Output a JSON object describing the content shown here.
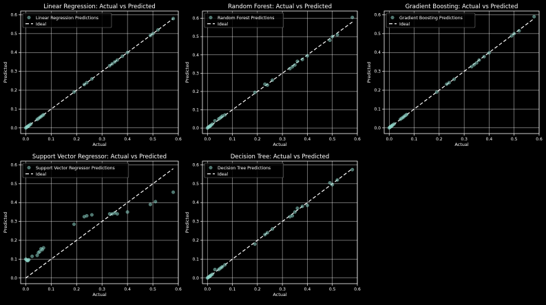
{
  "chart_data": [
    {
      "type": "scatter",
      "title": "Linear Regression: Actual vs Predicted",
      "xlabel": "Actual",
      "ylabel": "Predicted",
      "xlim": [
        -0.02,
        0.6
      ],
      "ylim": [
        -0.03,
        0.62
      ],
      "xticks": [
        0.0,
        0.1,
        0.2,
        0.3,
        0.4,
        0.5,
        0.6
      ],
      "yticks": [
        0.0,
        0.1,
        0.2,
        0.3,
        0.4,
        0.5,
        0.6
      ],
      "grid": true,
      "legend": "upper-left",
      "series": [
        {
          "name": "Linear Regression Predictions",
          "x": [
            0.0,
            0.002,
            0.004,
            0.006,
            0.008,
            0.01,
            0.012,
            0.015,
            0.02,
            0.045,
            0.05,
            0.055,
            0.06,
            0.065,
            0.07,
            0.19,
            0.23,
            0.24,
            0.26,
            0.33,
            0.34,
            0.35,
            0.36,
            0.38,
            0.4,
            0.49,
            0.5,
            0.52,
            0.58
          ],
          "y": [
            0.0,
            0.002,
            0.004,
            0.006,
            0.008,
            0.01,
            0.012,
            0.015,
            0.02,
            0.045,
            0.05,
            0.055,
            0.06,
            0.065,
            0.07,
            0.19,
            0.23,
            0.24,
            0.26,
            0.33,
            0.34,
            0.35,
            0.36,
            0.38,
            0.4,
            0.49,
            0.5,
            0.52,
            0.58
          ]
        }
      ],
      "reference_line": {
        "name": "Ideal",
        "x": [
          0.0,
          0.58
        ],
        "y": [
          0.0,
          0.58
        ]
      }
    },
    {
      "type": "scatter",
      "title": "Random Forest: Actual vs Predicted",
      "xlabel": "Actual",
      "ylabel": "Predicted",
      "xlim": [
        -0.02,
        0.6
      ],
      "ylim": [
        -0.03,
        0.64
      ],
      "xticks": [
        0.0,
        0.1,
        0.2,
        0.3,
        0.4,
        0.5,
        0.6
      ],
      "yticks": [
        0.0,
        0.1,
        0.2,
        0.3,
        0.4,
        0.5,
        0.6
      ],
      "grid": true,
      "legend": "upper-left",
      "series": [
        {
          "name": "Random Forest Predictions",
          "x": [
            0.0,
            0.002,
            0.004,
            0.006,
            0.008,
            0.01,
            0.012,
            0.015,
            0.02,
            0.03,
            0.045,
            0.05,
            0.055,
            0.06,
            0.07,
            0.19,
            0.23,
            0.24,
            0.26,
            0.33,
            0.34,
            0.35,
            0.36,
            0.38,
            0.4,
            0.49,
            0.5,
            0.52,
            0.58
          ],
          "y": [
            0.0,
            0.003,
            0.005,
            0.006,
            0.009,
            0.01,
            0.013,
            0.016,
            0.022,
            0.04,
            0.05,
            0.054,
            0.06,
            0.066,
            0.072,
            0.195,
            0.24,
            0.235,
            0.262,
            0.325,
            0.335,
            0.345,
            0.365,
            0.375,
            0.395,
            0.48,
            0.5,
            0.51,
            0.605
          ]
        }
      ],
      "reference_line": {
        "name": "Ideal",
        "x": [
          0.0,
          0.58
        ],
        "y": [
          0.0,
          0.58
        ]
      }
    },
    {
      "type": "scatter",
      "title": "Gradient Boosting: Actual vs Predicted",
      "xlabel": "Actual",
      "ylabel": "Predicted",
      "xlim": [
        -0.02,
        0.6
      ],
      "ylim": [
        -0.03,
        0.62
      ],
      "xticks": [
        0.0,
        0.1,
        0.2,
        0.3,
        0.4,
        0.5,
        0.6
      ],
      "yticks": [
        0.0,
        0.1,
        0.2,
        0.3,
        0.4,
        0.5,
        0.6
      ],
      "grid": true,
      "legend": "upper-left",
      "series": [
        {
          "name": "Gradient Boosting Predictions",
          "x": [
            0.0,
            0.002,
            0.004,
            0.006,
            0.008,
            0.01,
            0.012,
            0.015,
            0.02,
            0.045,
            0.05,
            0.055,
            0.06,
            0.065,
            0.07,
            0.19,
            0.23,
            0.24,
            0.26,
            0.33,
            0.34,
            0.35,
            0.36,
            0.38,
            0.4,
            0.49,
            0.5,
            0.52,
            0.58
          ],
          "y": [
            0.0,
            0.003,
            0.004,
            0.007,
            0.009,
            0.011,
            0.013,
            0.016,
            0.021,
            0.046,
            0.051,
            0.055,
            0.061,
            0.066,
            0.071,
            0.19,
            0.232,
            0.24,
            0.258,
            0.325,
            0.335,
            0.345,
            0.36,
            0.378,
            0.398,
            0.488,
            0.5,
            0.515,
            0.59
          ]
        }
      ],
      "reference_line": {
        "name": "Ideal",
        "x": [
          0.0,
          0.58
        ],
        "y": [
          0.0,
          0.58
        ]
      }
    },
    {
      "type": "scatter",
      "title": "Support Vector Regressor: Actual vs Predicted",
      "xlabel": "Actual",
      "ylabel": "Predicted",
      "xlim": [
        -0.02,
        0.6
      ],
      "ylim": [
        -0.03,
        0.62
      ],
      "xticks": [
        0.0,
        0.1,
        0.2,
        0.3,
        0.4,
        0.5,
        0.6
      ],
      "yticks": [
        0.0,
        0.1,
        0.2,
        0.3,
        0.4,
        0.5,
        0.6
      ],
      "grid": true,
      "legend": "upper-left",
      "series": [
        {
          "name": "Support Vector Regressor Predictions",
          "x": [
            0.0,
            0.002,
            0.004,
            0.006,
            0.008,
            0.01,
            0.012,
            0.025,
            0.045,
            0.05,
            0.055,
            0.06,
            0.065,
            0.07,
            0.19,
            0.23,
            0.24,
            0.26,
            0.33,
            0.34,
            0.35,
            0.36,
            0.4,
            0.49,
            0.51,
            0.58
          ],
          "y": [
            0.1,
            0.098,
            0.095,
            0.093,
            0.092,
            0.095,
            0.097,
            0.115,
            0.12,
            0.135,
            0.14,
            0.155,
            0.15,
            0.16,
            0.285,
            0.325,
            0.33,
            0.335,
            0.34,
            0.34,
            0.345,
            0.34,
            0.35,
            0.39,
            0.405,
            0.455
          ]
        }
      ],
      "reference_line": {
        "name": "Ideal",
        "x": [
          0.0,
          0.58
        ],
        "y": [
          0.0,
          0.58
        ]
      }
    },
    {
      "type": "scatter",
      "title": "Decision Tree: Actual vs Predicted",
      "xlabel": "Actual",
      "ylabel": "Predicted",
      "xlim": [
        -0.02,
        0.6
      ],
      "ylim": [
        -0.03,
        0.62
      ],
      "xticks": [
        0.0,
        0.1,
        0.2,
        0.3,
        0.4,
        0.5,
        0.6
      ],
      "yticks": [
        0.0,
        0.1,
        0.2,
        0.3,
        0.4,
        0.5,
        0.6
      ],
      "grid": true,
      "legend": "upper-left",
      "series": [
        {
          "name": "Decision Tree Predictions",
          "x": [
            0.0,
            0.002,
            0.004,
            0.006,
            0.008,
            0.01,
            0.012,
            0.015,
            0.02,
            0.03,
            0.045,
            0.05,
            0.055,
            0.06,
            0.07,
            0.19,
            0.23,
            0.24,
            0.26,
            0.33,
            0.34,
            0.35,
            0.36,
            0.38,
            0.4,
            0.49,
            0.5,
            0.52,
            0.58
          ],
          "y": [
            0.0,
            0.002,
            0.004,
            0.006,
            0.008,
            0.01,
            0.012,
            0.015,
            0.02,
            0.045,
            0.045,
            0.05,
            0.055,
            0.06,
            0.07,
            0.18,
            0.23,
            0.24,
            0.26,
            0.325,
            0.33,
            0.35,
            0.37,
            0.38,
            0.385,
            0.505,
            0.495,
            0.52,
            0.575
          ]
        }
      ],
      "reference_line": {
        "name": "Ideal",
        "x": [
          0.0,
          0.58
        ],
        "y": [
          0.0,
          0.58
        ]
      }
    }
  ]
}
